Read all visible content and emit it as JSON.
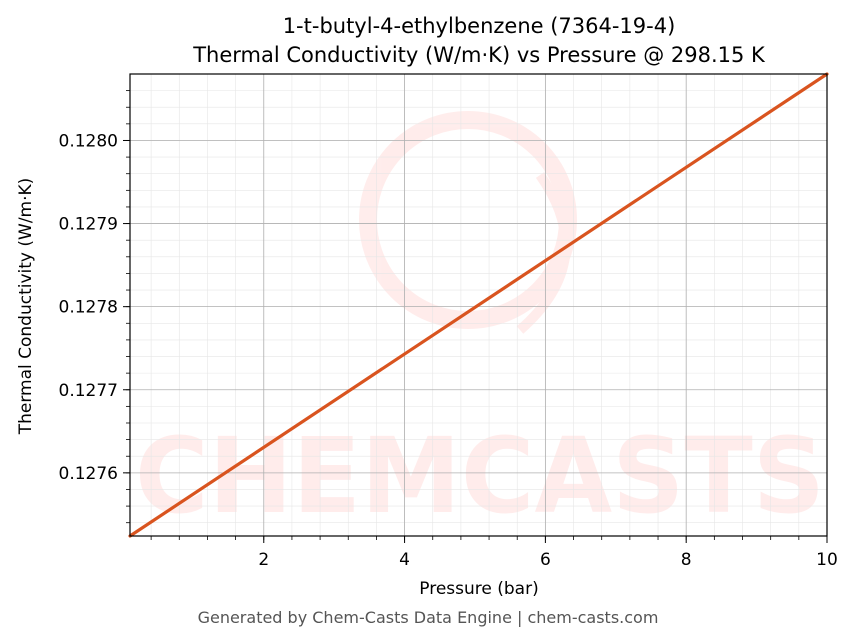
{
  "chart_data": {
    "type": "line",
    "title": "1-t-butyl-4-ethylbenzene (7364-19-4)",
    "subtitle": "Thermal Conductivity (W/m·K) vs Pressure @ 298.15 K",
    "xlabel": "Pressure (bar)",
    "ylabel": "Thermal Conductivity (W/m·K)",
    "xlim": [
      0.1,
      10
    ],
    "ylim": [
      0.127524,
      0.12808
    ],
    "x_ticks": [
      2,
      4,
      6,
      8,
      10
    ],
    "x_tick_labels": [
      "2",
      "4",
      "6",
      "8",
      "10"
    ],
    "y_ticks": [
      0.1276,
      0.1277,
      0.1278,
      0.1279,
      0.128
    ],
    "y_tick_labels": [
      "0.1276",
      "0.1277",
      "0.1278",
      "0.1279",
      "0.1280"
    ],
    "grid": true,
    "series": [
      {
        "color": "#d9541f",
        "x": [
          0.1,
          10
        ],
        "y": [
          0.127524,
          0.12808
        ]
      }
    ]
  },
  "watermark": {
    "text": "CHEMCASTS",
    "color": "#ff9b94"
  },
  "footer": "Generated by Chem-Casts Data Engine | chem-casts.com"
}
